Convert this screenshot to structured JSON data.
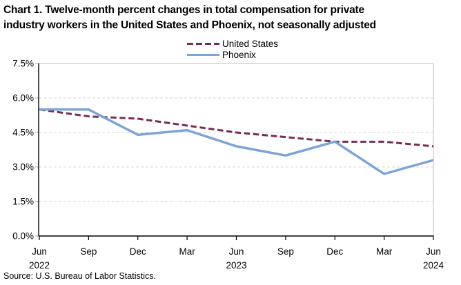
{
  "title": {
    "line1": "Chart 1. Twelve-month percent changes in total compensation for private",
    "line2": "industry workers in the United States and Phoenix, not seasonally adjusted"
  },
  "source": "Source: U.S. Bureau of Labor Statistics.",
  "colors": {
    "united_states": "#772C52",
    "phoenix": "#7DA3D7",
    "axis": "#000000",
    "gridline": "#D5D5D5",
    "plot_border": "#BFBFBF",
    "y_tick": "#A6A6A6"
  },
  "chart_data": {
    "type": "line",
    "title": "Chart 1. Twelve-month percent changes in total compensation for private industry workers in the United States and Phoenix, not seasonally adjusted",
    "categories": [
      "Jun 2022",
      "Sep 2022",
      "Dec 2022",
      "Mar 2023",
      "Jun 2023",
      "Sep 2023",
      "Dec 2023",
      "Mar 2024",
      "Jun 2024"
    ],
    "x_tick_months": [
      "Jun",
      "Sep",
      "Dec",
      "Mar",
      "Jun",
      "Sep",
      "Dec",
      "Mar",
      "Jun"
    ],
    "x_year_labels": [
      {
        "index": 0,
        "label": "2022"
      },
      {
        "index": 4,
        "label": "2023"
      },
      {
        "index": 8,
        "label": "2024"
      }
    ],
    "y_ticks": [
      "0.0%",
      "1.5%",
      "3.0%",
      "4.5%",
      "6.0%",
      "7.5%"
    ],
    "ylim": [
      0,
      7.5
    ],
    "grid": "horizontal-dashed",
    "legend_position": "top-center",
    "series": [
      {
        "name": "United States",
        "style": "dashed",
        "color": "#772C52",
        "values": [
          5.5,
          5.2,
          5.1,
          4.8,
          4.5,
          4.3,
          4.1,
          4.1,
          3.9
        ]
      },
      {
        "name": "Phoenix",
        "style": "solid",
        "color": "#7DA3D7",
        "values": [
          5.5,
          5.5,
          4.4,
          4.6,
          3.9,
          3.5,
          4.1,
          2.7,
          3.3
        ]
      }
    ]
  }
}
